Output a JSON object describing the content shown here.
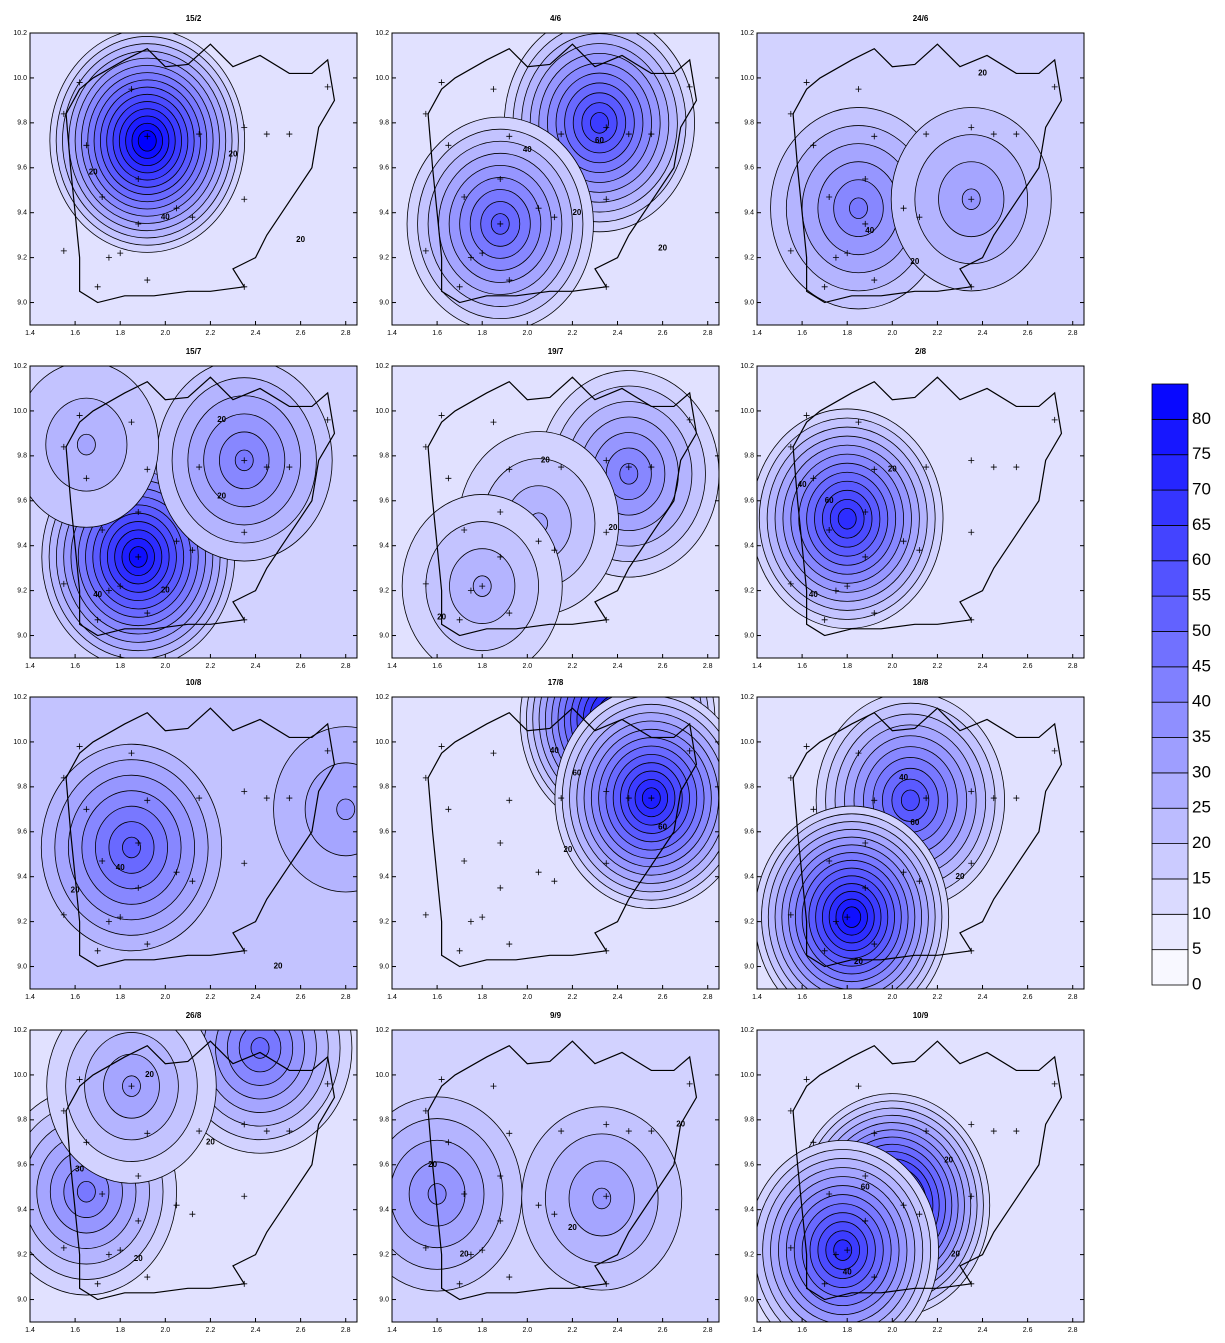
{
  "chart_data": [
    {
      "type": "contour",
      "title": "15/2",
      "background": 10,
      "xlim": [
        1.4,
        2.85
      ],
      "ylim": [
        8.9,
        10.2
      ],
      "xticks": [
        1.4,
        1.6,
        1.8,
        {
          "value": 2,
          "label": "2.0"
        },
        2.2,
        2.4,
        2.6,
        2.8
      ],
      "yticks": [
        {
          "value": 9,
          "label": "9.0"
        },
        9.2,
        9.4,
        9.6,
        9.8,
        {
          "value": 10,
          "label": "10.0"
        },
        10.2
      ],
      "peaks": [
        {
          "x": 1.92,
          "y": 9.72,
          "value": 85
        }
      ],
      "contour_labels": [
        {
          "level": 20,
          "x": 1.68,
          "y": 9.58
        },
        {
          "level": 20,
          "x": 2.3,
          "y": 9.66
        },
        {
          "level": 40,
          "x": 2.0,
          "y": 9.38
        },
        {
          "level": 20,
          "x": 2.6,
          "y": 9.28
        }
      ]
    },
    {
      "type": "contour",
      "title": "4/6",
      "background": 10,
      "xlim": [
        1.4,
        2.85
      ],
      "ylim": [
        8.9,
        10.2
      ],
      "xticks": [
        1.4,
        1.6,
        1.8,
        {
          "value": 2,
          "label": "2.0"
        },
        2.2,
        2.4,
        2.6,
        2.8
      ],
      "yticks": [
        {
          "value": 9,
          "label": "9.0"
        },
        9.2,
        9.4,
        9.6,
        9.8,
        {
          "value": 10,
          "label": "10.0"
        },
        10.2
      ],
      "peaks": [
        {
          "x": 2.32,
          "y": 9.8,
          "value": 65
        },
        {
          "x": 1.88,
          "y": 9.35,
          "value": 55
        }
      ],
      "contour_labels": [
        {
          "level": 40,
          "x": 2.0,
          "y": 9.68
        },
        {
          "level": 60,
          "x": 2.32,
          "y": 9.72
        },
        {
          "level": 20,
          "x": 2.22,
          "y": 9.4
        },
        {
          "level": 20,
          "x": 2.6,
          "y": 9.24
        }
      ]
    },
    {
      "type": "contour",
      "title": "24/6",
      "background": 15,
      "xlim": [
        1.4,
        2.85
      ],
      "ylim": [
        8.9,
        10.2
      ],
      "xticks": [
        1.4,
        1.6,
        1.8,
        {
          "value": 2,
          "label": "2.0"
        },
        2.2,
        2.4,
        2.6,
        2.8
      ],
      "yticks": [
        {
          "value": 9,
          "label": "9.0"
        },
        9.2,
        9.4,
        9.6,
        9.8,
        {
          "value": 10,
          "label": "10.0"
        },
        10.2
      ],
      "peaks": [
        {
          "x": 1.85,
          "y": 9.42,
          "value": 45
        },
        {
          "x": 2.35,
          "y": 9.46,
          "value": 35
        }
      ],
      "contour_labels": [
        {
          "level": 40,
          "x": 1.9,
          "y": 9.32
        },
        {
          "level": 20,
          "x": 2.4,
          "y": 10.02
        },
        {
          "level": 20,
          "x": 2.1,
          "y": 9.18
        }
      ]
    },
    {
      "type": "contour",
      "title": "15/7",
      "background": 15,
      "xlim": [
        1.4,
        2.85
      ],
      "ylim": [
        8.9,
        10.2
      ],
      "xticks": [
        1.4,
        1.6,
        1.8,
        {
          "value": 2,
          "label": "2.0"
        },
        2.2,
        2.4,
        2.6,
        2.8
      ],
      "yticks": [
        {
          "value": 9,
          "label": "9.0"
        },
        9.2,
        9.4,
        9.6,
        9.8,
        {
          "value": 10,
          "label": "10.0"
        },
        10.2
      ],
      "peaks": [
        {
          "x": 1.88,
          "y": 9.35,
          "value": 80
        },
        {
          "x": 2.35,
          "y": 9.78,
          "value": 45
        },
        {
          "x": 1.65,
          "y": 9.85,
          "value": 30
        }
      ],
      "contour_labels": [
        {
          "level": 20,
          "x": 2.25,
          "y": 9.96
        },
        {
          "level": 20,
          "x": 2.25,
          "y": 9.62
        },
        {
          "level": 40,
          "x": 1.7,
          "y": 9.18
        },
        {
          "level": 20,
          "x": 2.0,
          "y": 9.2
        }
      ]
    },
    {
      "type": "contour",
      "title": "19/7",
      "background": 10,
      "xlim": [
        1.4,
        2.85
      ],
      "ylim": [
        8.9,
        10.2
      ],
      "xticks": [
        1.4,
        1.6,
        1.8,
        {
          "value": 2,
          "label": "2.0"
        },
        2.2,
        2.4,
        2.6,
        2.8
      ],
      "yticks": [
        {
          "value": 9,
          "label": "9.0"
        },
        9.2,
        9.4,
        9.6,
        9.8,
        {
          "value": 10,
          "label": "10.0"
        },
        10.2
      ],
      "peaks": [
        {
          "x": 2.45,
          "y": 9.72,
          "value": 45
        },
        {
          "x": 2.05,
          "y": 9.5,
          "value": 30
        },
        {
          "x": 1.8,
          "y": 9.22,
          "value": 30
        }
      ],
      "contour_labels": [
        {
          "level": 20,
          "x": 2.08,
          "y": 9.78
        },
        {
          "level": 20,
          "x": 2.38,
          "y": 9.48
        },
        {
          "level": 20,
          "x": 1.62,
          "y": 9.08
        }
      ]
    },
    {
      "type": "contour",
      "title": "2/8",
      "background": 10,
      "xlim": [
        1.4,
        2.85
      ],
      "ylim": [
        8.9,
        10.2
      ],
      "xticks": [
        1.4,
        1.6,
        1.8,
        {
          "value": 2,
          "label": "2.0"
        },
        2.2,
        2.4,
        2.6,
        2.8
      ],
      "yticks": [
        {
          "value": 9,
          "label": "9.0"
        },
        9.2,
        9.4,
        9.6,
        9.8,
        {
          "value": 10,
          "label": "10.0"
        },
        10.2
      ],
      "peaks": [
        {
          "x": 1.8,
          "y": 9.52,
          "value": 70
        }
      ],
      "contour_labels": [
        {
          "level": 40,
          "x": 1.6,
          "y": 9.67
        },
        {
          "level": 60,
          "x": 1.72,
          "y": 9.6
        },
        {
          "level": 40,
          "x": 1.65,
          "y": 9.18
        },
        {
          "level": 20,
          "x": 2.0,
          "y": 9.74
        }
      ]
    },
    {
      "type": "contour",
      "title": "10/8",
      "background": 20,
      "xlim": [
        1.4,
        2.85
      ],
      "ylim": [
        8.9,
        10.2
      ],
      "xticks": [
        1.4,
        1.6,
        1.8,
        {
          "value": 2,
          "label": "2.0"
        },
        2.2,
        2.4,
        2.6,
        2.8
      ],
      "yticks": [
        {
          "value": 9,
          "label": "9.0"
        },
        9.2,
        9.4,
        9.6,
        9.8,
        {
          "value": 10,
          "label": "10.0"
        },
        10.2
      ],
      "peaks": [
        {
          "x": 1.85,
          "y": 9.53,
          "value": 55
        },
        {
          "x": 2.8,
          "y": 9.7,
          "value": 35
        }
      ],
      "contour_labels": [
        {
          "level": 20,
          "x": 1.6,
          "y": 9.34
        },
        {
          "level": 40,
          "x": 1.8,
          "y": 9.44
        },
        {
          "level": 20,
          "x": 2.5,
          "y": 9.0
        }
      ]
    },
    {
      "type": "contour",
      "title": "17/8",
      "background": 10,
      "xlim": [
        1.4,
        2.85
      ],
      "ylim": [
        8.9,
        10.2
      ],
      "xticks": [
        1.4,
        1.6,
        1.8,
        {
          "value": 2,
          "label": "2.0"
        },
        2.2,
        2.4,
        2.6,
        2.8
      ],
      "yticks": [
        {
          "value": 9,
          "label": "9.0"
        },
        9.2,
        9.4,
        9.6,
        9.8,
        {
          "value": 10,
          "label": "10.0"
        },
        10.2
      ],
      "peaks": [
        {
          "x": 2.4,
          "y": 10.1,
          "value": 85
        },
        {
          "x": 2.55,
          "y": 9.75,
          "value": 75
        }
      ],
      "contour_labels": [
        {
          "level": 40,
          "x": 2.12,
          "y": 9.96
        },
        {
          "level": 60,
          "x": 2.22,
          "y": 9.86
        },
        {
          "level": 60,
          "x": 2.6,
          "y": 9.62
        },
        {
          "level": 20,
          "x": 2.18,
          "y": 9.52
        }
      ]
    },
    {
      "type": "contour",
      "title": "18/8",
      "background": 10,
      "xlim": [
        1.4,
        2.85
      ],
      "ylim": [
        8.9,
        10.2
      ],
      "xticks": [
        1.4,
        1.6,
        1.8,
        {
          "value": 2,
          "label": "2.0"
        },
        2.2,
        2.4,
        2.6,
        2.8
      ],
      "yticks": [
        {
          "value": 9,
          "label": "9.0"
        },
        9.2,
        9.4,
        9.6,
        9.8,
        {
          "value": 10,
          "label": "10.0"
        },
        10.2
      ],
      "peaks": [
        {
          "x": 2.08,
          "y": 9.74,
          "value": 60
        },
        {
          "x": 1.82,
          "y": 9.22,
          "value": 80
        }
      ],
      "contour_labels": [
        {
          "level": 40,
          "x": 2.05,
          "y": 9.84
        },
        {
          "level": 60,
          "x": 2.1,
          "y": 9.64
        },
        {
          "level": 20,
          "x": 2.3,
          "y": 9.4
        },
        {
          "level": 20,
          "x": 1.85,
          "y": 9.02
        }
      ]
    },
    {
      "type": "contour",
      "title": "26/8",
      "background": 10,
      "xlim": [
        1.4,
        2.85
      ],
      "ylim": [
        8.9,
        10.2
      ],
      "xticks": [
        1.4,
        1.6,
        1.8,
        {
          "value": 2,
          "label": "2.0"
        },
        2.2,
        2.4,
        2.6,
        2.8
      ],
      "yticks": [
        {
          "value": 9,
          "label": "9.0"
        },
        9.2,
        9.4,
        9.6,
        9.8,
        {
          "value": 10,
          "label": "10.0"
        },
        10.2
      ],
      "peaks": [
        {
          "x": 2.42,
          "y": 10.12,
          "value": 50
        },
        {
          "x": 1.65,
          "y": 9.48,
          "value": 45
        },
        {
          "x": 1.85,
          "y": 9.95,
          "value": 35
        }
      ],
      "contour_labels": [
        {
          "level": 20,
          "x": 1.93,
          "y": 10.0
        },
        {
          "level": 30,
          "x": 1.62,
          "y": 9.58
        },
        {
          "level": 20,
          "x": 2.2,
          "y": 9.7
        },
        {
          "level": 20,
          "x": 1.88,
          "y": 9.18
        }
      ]
    },
    {
      "type": "contour",
      "title": "9/9",
      "background": 15,
      "xlim": [
        1.4,
        2.85
      ],
      "ylim": [
        8.9,
        10.2
      ],
      "xticks": [
        1.4,
        1.6,
        1.8,
        {
          "value": 2,
          "label": "2.0"
        },
        2.2,
        2.4,
        2.6,
        2.8
      ],
      "yticks": [
        {
          "value": 9,
          "label": "9.0"
        },
        9.2,
        9.4,
        9.6,
        9.8,
        {
          "value": 10,
          "label": "10.0"
        },
        10.2
      ],
      "peaks": [
        {
          "x": 1.6,
          "y": 9.47,
          "value": 40
        },
        {
          "x": 2.33,
          "y": 9.45,
          "value": 35
        }
      ],
      "contour_labels": [
        {
          "level": 20,
          "x": 1.58,
          "y": 9.6
        },
        {
          "level": 20,
          "x": 1.72,
          "y": 9.2
        },
        {
          "level": 20,
          "x": 2.2,
          "y": 9.32
        },
        {
          "level": 20,
          "x": 2.68,
          "y": 9.78
        }
      ]
    },
    {
      "type": "contour",
      "title": "10/9",
      "background": 10,
      "xlim": [
        1.4,
        2.85
      ],
      "ylim": [
        8.9,
        10.2
      ],
      "xticks": [
        1.4,
        1.6,
        1.8,
        {
          "value": 2,
          "label": "2.0"
        },
        2.2,
        2.4,
        2.6,
        2.8
      ],
      "yticks": [
        {
          "value": 9,
          "label": "9.0"
        },
        9.2,
        9.4,
        9.6,
        9.8,
        {
          "value": 10,
          "label": "10.0"
        },
        10.2
      ],
      "peaks": [
        {
          "x": 2.0,
          "y": 9.42,
          "value": 85
        },
        {
          "x": 1.78,
          "y": 9.22,
          "value": 70
        }
      ],
      "contour_labels": [
        {
          "level": 20,
          "x": 2.25,
          "y": 9.62
        },
        {
          "level": 60,
          "x": 1.88,
          "y": 9.5
        },
        {
          "level": 40,
          "x": 1.8,
          "y": 9.12
        },
        {
          "level": 20,
          "x": 2.28,
          "y": 9.2
        }
      ]
    }
  ],
  "stations": {
    "x": [
      1.55,
      1.65,
      1.72,
      1.88,
      1.92,
      1.85,
      1.8,
      1.75,
      1.92,
      1.88,
      2.05,
      2.12,
      2.15,
      2.35,
      2.35,
      2.45,
      2.55,
      2.72,
      1.55,
      1.7,
      2.35,
      1.62
    ],
    "y": [
      9.84,
      9.7,
      9.47,
      9.55,
      9.74,
      9.95,
      9.22,
      9.2,
      9.1,
      9.35,
      9.42,
      9.38,
      9.75,
      9.78,
      9.46,
      9.75,
      9.75,
      9.96,
      9.23,
      9.07,
      9.07,
      9.98
    ]
  },
  "colorbar": {
    "clim": [
      0,
      85
    ],
    "colors": [
      "#ffffff",
      "#0000ff"
    ],
    "ticks": [
      0,
      5,
      10,
      15,
      20,
      25,
      30,
      35,
      40,
      45,
      50,
      55,
      60,
      65,
      70,
      75,
      80
    ]
  }
}
